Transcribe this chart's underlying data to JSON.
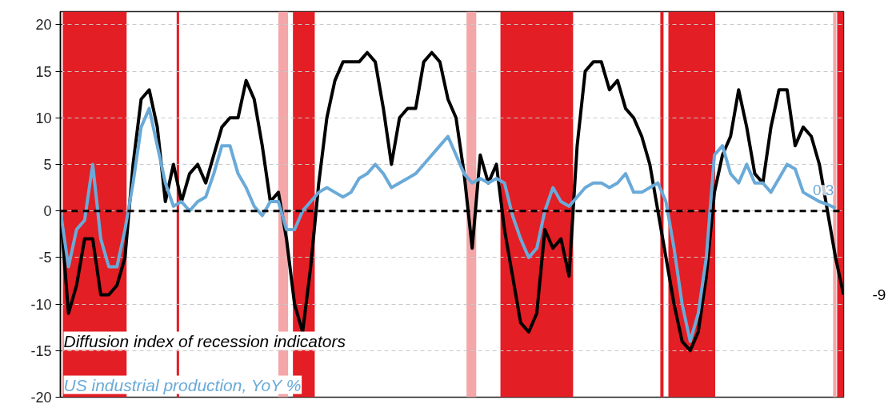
{
  "chart_data": {
    "type": "line",
    "categories": [
      null,
      null,
      null,
      null,
      null,
      null,
      null,
      null,
      null,
      null,
      null,
      null,
      null,
      null,
      null,
      null,
      null,
      null,
      null,
      null,
      null,
      null,
      null,
      null,
      null,
      null,
      null,
      null,
      null,
      null,
      null,
      null,
      null,
      null,
      null,
      null,
      null,
      null,
      null,
      null,
      null,
      null,
      null,
      null,
      null,
      null,
      null,
      null,
      null,
      null,
      null,
      null,
      null,
      null,
      null,
      null,
      null,
      null,
      null,
      null,
      null,
      null,
      null,
      null,
      null,
      null,
      null,
      null,
      null,
      null,
      null,
      null,
      null,
      null,
      null,
      null,
      null,
      null,
      null,
      null,
      null,
      null,
      null,
      null,
      null,
      null,
      null,
      null,
      null,
      null,
      null,
      null,
      null,
      null,
      null,
      null,
      null,
      null
    ],
    "series": [
      {
        "name": "Diffusion index of recession indicators",
        "color": "#000000",
        "values": [
          0,
          -11,
          -8,
          -3,
          -3,
          -9,
          -9,
          -8,
          -5,
          5,
          12,
          13,
          9,
          1,
          5,
          1,
          4,
          5,
          3,
          6,
          9,
          10,
          10,
          14,
          12,
          7,
          1,
          2,
          -3,
          -10,
          -13,
          -6,
          3,
          10,
          14,
          16,
          16,
          16,
          17,
          16,
          11,
          5,
          10,
          11,
          11,
          16,
          17,
          16,
          12,
          10,
          4,
          -4,
          6,
          3,
          5,
          -2,
          -7,
          -12,
          -13,
          -11,
          -2,
          -4,
          -3,
          -7,
          7,
          15,
          16,
          16,
          13,
          14,
          11,
          10,
          8,
          5,
          0,
          -5,
          -10,
          -14,
          -15,
          -13,
          -7,
          2,
          6,
          8,
          13,
          9,
          4,
          3,
          9,
          13,
          13,
          7,
          9,
          8,
          5,
          0,
          -5,
          -9
        ],
        "value_labels": [
          null,
          null,
          null,
          null,
          null,
          null,
          null,
          null,
          null,
          null,
          null,
          null,
          null,
          null,
          null,
          null,
          null,
          null,
          null,
          null,
          null,
          null,
          null,
          null,
          null,
          null,
          null,
          null,
          null,
          null,
          null,
          null,
          null,
          null,
          null,
          null,
          null,
          null,
          null,
          null,
          null,
          null,
          null,
          null,
          null,
          null,
          null,
          null,
          null,
          null,
          null,
          null,
          null,
          null,
          null,
          null,
          null,
          null,
          null,
          null,
          null,
          null,
          null,
          null,
          null,
          null,
          null,
          null,
          null,
          null,
          null,
          null,
          null,
          null,
          null,
          null,
          null,
          null,
          null,
          null,
          null,
          null,
          null,
          null,
          null,
          null,
          null,
          null,
          null,
          null,
          null,
          null,
          null,
          null,
          null,
          null,
          null,
          "-9"
        ]
      },
      {
        "name": "US industrial production, YoY %",
        "color": "#6aaad8",
        "values": [
          0,
          -6,
          -2,
          -1,
          5,
          -3,
          -6,
          -6,
          -2,
          3,
          9,
          11,
          7,
          3,
          0.5,
          1,
          0,
          1,
          1.5,
          4,
          7,
          7,
          4,
          2.5,
          0.5,
          -0.5,
          1,
          1,
          -2,
          -2,
          0,
          1,
          2,
          2.5,
          2,
          1.5,
          2,
          3.5,
          4,
          5,
          4,
          2.5,
          3,
          3.5,
          4,
          5,
          6,
          7,
          8,
          6,
          4,
          3,
          3.5,
          3,
          3.5,
          3,
          -0.5,
          -3,
          -5,
          -4,
          0,
          2.5,
          1,
          0.5,
          1.5,
          2.5,
          3,
          3,
          2.5,
          3,
          4,
          2,
          2,
          2.5,
          3,
          1,
          -4,
          -10,
          -14,
          -11,
          -5,
          6,
          7,
          4,
          3,
          5,
          3,
          3,
          2,
          3.5,
          5,
          4.5,
          2,
          1.5,
          1,
          0.7,
          0.3,
          null
        ],
        "value_labels": [
          null,
          null,
          null,
          null,
          null,
          null,
          null,
          null,
          null,
          null,
          null,
          null,
          null,
          null,
          null,
          null,
          null,
          null,
          null,
          null,
          null,
          null,
          null,
          null,
          null,
          null,
          null,
          null,
          null,
          null,
          null,
          null,
          null,
          null,
          null,
          null,
          null,
          null,
          null,
          null,
          null,
          null,
          null,
          null,
          null,
          null,
          null,
          null,
          null,
          null,
          null,
          null,
          null,
          null,
          null,
          null,
          null,
          null,
          null,
          null,
          null,
          null,
          null,
          null,
          null,
          null,
          null,
          null,
          null,
          null,
          null,
          null,
          null,
          null,
          null,
          null,
          null,
          null,
          null,
          null,
          null,
          null,
          null,
          null,
          null,
          null,
          null,
          null,
          null,
          null,
          null,
          null,
          null,
          null,
          null,
          null,
          "0.3",
          null
        ]
      }
    ],
    "ylim": [
      -20,
      21.4
    ],
    "yticks": [
      -20,
      -15,
      -10,
      -5,
      0,
      5,
      10,
      15,
      20
    ],
    "tick_labels": "y",
    "grid": "y",
    "legend": "bottom left",
    "line_style": "solid",
    "ref_lines": [
      {
        "axis": "y",
        "value": 0,
        "label": null,
        "color": "#000000",
        "line_style": "dashed"
      }
    ]
  }
}
